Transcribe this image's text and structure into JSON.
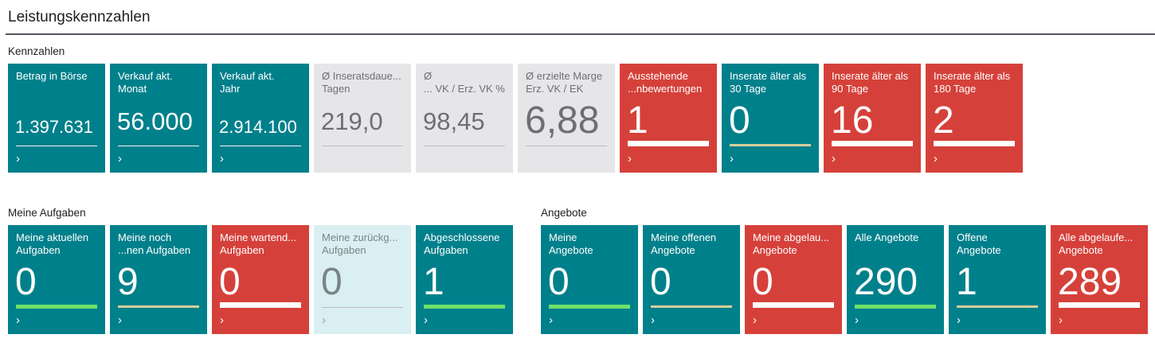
{
  "page_title": "Leistungskennzahlen",
  "colors": {
    "teal": "#00808b",
    "red": "#d5413a",
    "gray": "#e6e6e8",
    "light": "#daeff1",
    "bar_green": "#6ee06a",
    "bar_tan": "#d4cf9a",
    "bar_white": "#ffffff"
  },
  "chevron": "›",
  "groups": [
    {
      "label": "Kennzahlen",
      "tiles": [
        {
          "title": "Betrag in Börse",
          "value": "1.397.631",
          "style": "teal",
          "size": "small",
          "bar": "line"
        },
        {
          "title": "Verkauf akt.\nMonat",
          "value": "56.000",
          "style": "teal",
          "size": "medium",
          "bar": "line"
        },
        {
          "title": "Verkauf akt.\nJahr",
          "value": "2.914.100",
          "style": "teal",
          "size": "small",
          "bar": "line"
        },
        {
          "title": "Ø Inseratsdaue...\nTagen",
          "value": "219,0",
          "style": "gray",
          "size": "medium",
          "bar": "line",
          "no_chevron": true
        },
        {
          "title": "Ø\n... VK / Erz. VK %",
          "value": "98,45",
          "style": "gray",
          "size": "medium",
          "bar": "line",
          "no_chevron": true
        },
        {
          "title": "Ø erzielte Marge\nErz. VK / EK",
          "value": "6,88",
          "style": "gray",
          "size": "large",
          "bar": "line",
          "no_chevron": true
        },
        {
          "title": "Ausstehende\n...nbewertungen",
          "value": "1",
          "style": "red",
          "size": "large",
          "bar": "white"
        },
        {
          "title": "Inserate älter als\n30 Tage",
          "value": "0",
          "style": "teal",
          "size": "large",
          "bar": "tan"
        },
        {
          "title": "Inserate älter als\n90 Tage",
          "value": "16",
          "style": "red",
          "size": "large",
          "bar": "white"
        },
        {
          "title": "Inserate älter als\n180 Tage",
          "value": "2",
          "style": "red",
          "size": "large",
          "bar": "white"
        }
      ]
    },
    {
      "label": "Meine Aufgaben",
      "tiles": [
        {
          "title": "Meine aktuellen\nAufgaben",
          "value": "0",
          "style": "teal",
          "size": "large",
          "bar": "green"
        },
        {
          "title": "Meine noch\n...nen Aufgaben",
          "value": "9",
          "style": "teal",
          "size": "large",
          "bar": "tan"
        },
        {
          "title": "Meine wartend...\nAufgaben",
          "value": "0",
          "style": "red",
          "size": "large",
          "bar": "white"
        },
        {
          "title": "Meine zurückg...\nAufgaben",
          "value": "0",
          "style": "light",
          "size": "large",
          "bar": "line"
        },
        {
          "title": "Abgeschlossene\nAufgaben",
          "value": "1",
          "style": "teal",
          "size": "large",
          "bar": "green"
        }
      ]
    },
    {
      "label": "Angebote",
      "tiles": [
        {
          "title": "Meine\nAngebote",
          "value": "0",
          "style": "teal",
          "size": "large",
          "bar": "green"
        },
        {
          "title": "Meine offenen\nAngebote",
          "value": "0",
          "style": "teal",
          "size": "large",
          "bar": "tan"
        },
        {
          "title": "Meine abgelau...\nAngebote",
          "value": "0",
          "style": "red",
          "size": "large",
          "bar": "white"
        },
        {
          "title": "Alle Angebote",
          "value": "290",
          "style": "teal",
          "size": "large",
          "bar": "green"
        },
        {
          "title": "Offene\nAngebote",
          "value": "1",
          "style": "teal",
          "size": "large",
          "bar": "tan"
        },
        {
          "title": "Alle abgelaufe...\nAngebote",
          "value": "289",
          "style": "red",
          "size": "large",
          "bar": "white"
        }
      ]
    }
  ]
}
